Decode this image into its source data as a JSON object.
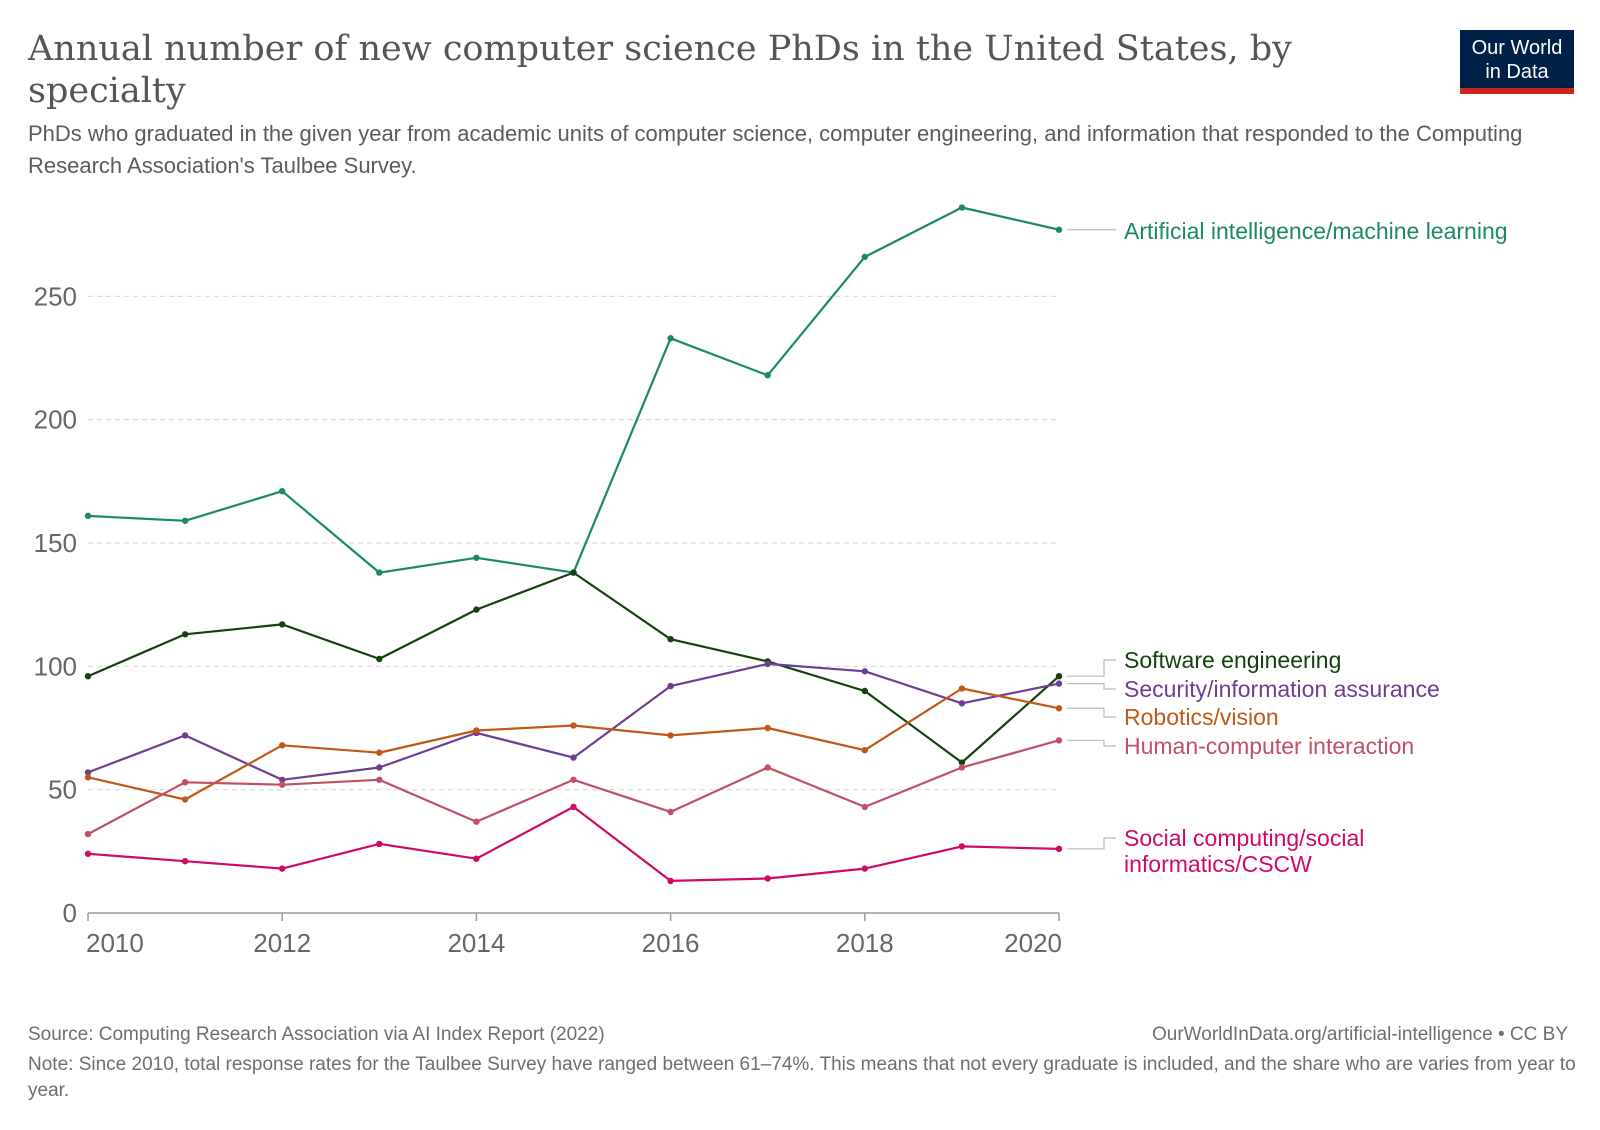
{
  "title": "Annual number of new computer science PhDs in the United States, by specialty",
  "subtitle": "PhDs who graduated in the given year from academic units of computer science, computer engineering, and information that responded to the Computing Research Association's Taulbee Survey.",
  "logo": {
    "line1": "Our World",
    "line2": "in Data",
    "bg_color": "#002147",
    "accent_color": "#ce261e"
  },
  "footer": {
    "source": "Source: Computing Research Association via AI Index Report (2022)",
    "url": "OurWorldInData.org/artificial-intelligence • CC BY",
    "note": "Note: Since 2010, total response rates for the Taulbee Survey have ranged between 61–74%. This means that not every graduate is included, and the share who are varies from year to year."
  },
  "chart_data": {
    "type": "line",
    "x": [
      2010,
      2011,
      2012,
      2013,
      2014,
      2015,
      2016,
      2017,
      2018,
      2019,
      2020
    ],
    "xlim": [
      2010,
      2020
    ],
    "ylim": [
      0,
      290
    ],
    "x_ticks": [
      "2010",
      "2012",
      "2014",
      "2016",
      "2018",
      "2020"
    ],
    "y_ticks": [
      "0",
      "50",
      "100",
      "150",
      "200",
      "250"
    ],
    "grid": "horizontal dashed",
    "legend": "right, line-end labels",
    "series": [
      {
        "name": "Artificial intelligence/machine learning",
        "color": "#1b8a62",
        "values": [
          161,
          159,
          171,
          138,
          144,
          138,
          233,
          218,
          266,
          286,
          277
        ]
      },
      {
        "name": "Software engineering",
        "color": "#15410f",
        "values": [
          96,
          113,
          117,
          103,
          123,
          138,
          111,
          102,
          90,
          61,
          96
        ]
      },
      {
        "name": "Security/information assurance",
        "color": "#6d3e91",
        "values": [
          57,
          72,
          54,
          59,
          73,
          63,
          92,
          101,
          98,
          85,
          93
        ]
      },
      {
        "name": "Robotics/vision",
        "color": "#c05917",
        "values": [
          55,
          46,
          68,
          65,
          74,
          76,
          72,
          75,
          66,
          91,
          83
        ]
      },
      {
        "name": "Human-computer interaction",
        "color": "#c15065",
        "values": [
          32,
          53,
          52,
          54,
          37,
          54,
          41,
          59,
          43,
          59,
          70
        ]
      },
      {
        "name": "Social computing/social informatics/CSCW",
        "name_lines": [
          "Social computing/social",
          "informatics/CSCW"
        ],
        "color": "#cf0a66",
        "values": [
          24,
          21,
          18,
          28,
          22,
          43,
          13,
          14,
          18,
          27,
          26
        ]
      }
    ]
  }
}
